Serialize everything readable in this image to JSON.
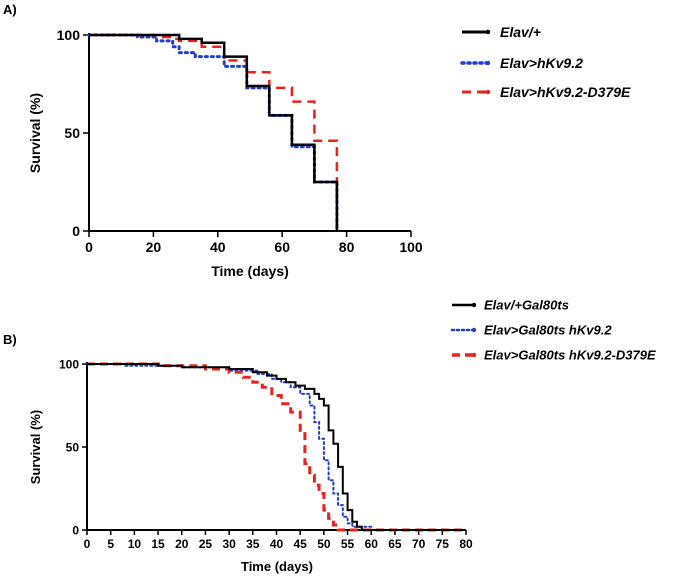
{
  "chart_data": [
    {
      "panel": "A)",
      "type": "line",
      "subtype": "step-survival",
      "xlabel": "Time (days)",
      "ylabel": "Survival (%)",
      "xlim": [
        0,
        100
      ],
      "ylim": [
        0,
        100
      ],
      "xticks": [
        0,
        20,
        40,
        60,
        80,
        100
      ],
      "yticks": [
        0,
        50,
        100
      ],
      "legend_position": "top-right",
      "series": [
        {
          "name": "Elav/+",
          "color": "#000000",
          "style": "solid",
          "points": [
            [
              0,
              100
            ],
            [
              28,
              100
            ],
            [
              28,
              98
            ],
            [
              35,
              98
            ],
            [
              35,
              96
            ],
            [
              42,
              96
            ],
            [
              42,
              89
            ],
            [
              49,
              89
            ],
            [
              49,
              74
            ],
            [
              56,
              74
            ],
            [
              56,
              59
            ],
            [
              63,
              59
            ],
            [
              63,
              44
            ],
            [
              70,
              44
            ],
            [
              70,
              25
            ],
            [
              77,
              25
            ],
            [
              77,
              0
            ]
          ]
        },
        {
          "name": "Elav>hKv9.2",
          "color": "#1f3fc9",
          "style": "dotted",
          "points": [
            [
              0,
              100
            ],
            [
              15,
              100
            ],
            [
              15,
              99
            ],
            [
              21,
              99
            ],
            [
              21,
              97
            ],
            [
              26,
              97
            ],
            [
              26,
              94
            ],
            [
              28,
              94
            ],
            [
              28,
              91
            ],
            [
              33,
              91
            ],
            [
              33,
              89
            ],
            [
              42,
              89
            ],
            [
              42,
              84
            ],
            [
              49,
              84
            ],
            [
              49,
              73
            ],
            [
              56,
              73
            ],
            [
              56,
              59
            ],
            [
              63,
              59
            ],
            [
              63,
              43
            ],
            [
              70,
              43
            ],
            [
              70,
              25
            ],
            [
              77,
              25
            ],
            [
              77,
              0
            ]
          ]
        },
        {
          "name": "Elav>hKv9.2-D379E",
          "color": "#e8231c",
          "style": "dashed",
          "points": [
            [
              0,
              100
            ],
            [
              21,
              100
            ],
            [
              21,
              99
            ],
            [
              26,
              99
            ],
            [
              26,
              98
            ],
            [
              28,
              98
            ],
            [
              28,
              97
            ],
            [
              35,
              97
            ],
            [
              35,
              94
            ],
            [
              42,
              94
            ],
            [
              42,
              87
            ],
            [
              49,
              87
            ],
            [
              49,
              81
            ],
            [
              56,
              81
            ],
            [
              56,
              73
            ],
            [
              63,
              73
            ],
            [
              63,
              66
            ],
            [
              70,
              66
            ],
            [
              70,
              46
            ],
            [
              77,
              46
            ],
            [
              77,
              0
            ]
          ]
        }
      ]
    },
    {
      "panel": "B)",
      "type": "line",
      "subtype": "step-survival",
      "xlabel": "Time (days)",
      "ylabel": "Survival (%)",
      "xlim": [
        0,
        80
      ],
      "ylim": [
        0,
        100
      ],
      "xticks": [
        0,
        5,
        10,
        15,
        20,
        25,
        30,
        35,
        40,
        45,
        50,
        55,
        60,
        65,
        70,
        75,
        80
      ],
      "yticks": [
        0,
        50,
        100
      ],
      "legend_position": "top-right",
      "series": [
        {
          "name": "Elav/+Gal80ts",
          "color": "#000000",
          "style": "solid",
          "points": [
            [
              0,
              100
            ],
            [
              15,
              100
            ],
            [
              15,
              99
            ],
            [
              20,
              99
            ],
            [
              20,
              98
            ],
            [
              30,
              98
            ],
            [
              30,
              97
            ],
            [
              35,
              97
            ],
            [
              35,
              95
            ],
            [
              38,
              95
            ],
            [
              38,
              93
            ],
            [
              40,
              93
            ],
            [
              40,
              91
            ],
            [
              42,
              91
            ],
            [
              42,
              89
            ],
            [
              44,
              89
            ],
            [
              44,
              87
            ],
            [
              46,
              87
            ],
            [
              46,
              85
            ],
            [
              48,
              85
            ],
            [
              48,
              82
            ],
            [
              49,
              82
            ],
            [
              49,
              79
            ],
            [
              50,
              79
            ],
            [
              50,
              75
            ],
            [
              51,
              75
            ],
            [
              51,
              60
            ],
            [
              52,
              60
            ],
            [
              52,
              52
            ],
            [
              53,
              52
            ],
            [
              53,
              38
            ],
            [
              54,
              38
            ],
            [
              54,
              22
            ],
            [
              55,
              22
            ],
            [
              55,
              12
            ],
            [
              56,
              12
            ],
            [
              56,
              5
            ],
            [
              57,
              5
            ],
            [
              57,
              2
            ],
            [
              58,
              2
            ],
            [
              58,
              0
            ],
            [
              80,
              0
            ]
          ]
        },
        {
          "name": "Elav>Gal80ts hKv9.2",
          "color": "#1f3fc9",
          "style": "dotted",
          "points": [
            [
              0,
              100
            ],
            [
              8,
              100
            ],
            [
              8,
              99
            ],
            [
              20,
              99
            ],
            [
              20,
              98
            ],
            [
              30,
              98
            ],
            [
              30,
              96
            ],
            [
              36,
              96
            ],
            [
              36,
              94
            ],
            [
              39,
              94
            ],
            [
              39,
              91
            ],
            [
              41,
              91
            ],
            [
              41,
              89
            ],
            [
              43,
              89
            ],
            [
              43,
              86
            ],
            [
              45,
              86
            ],
            [
              45,
              82
            ],
            [
              47,
              82
            ],
            [
              47,
              75
            ],
            [
              48,
              75
            ],
            [
              48,
              65
            ],
            [
              49,
              65
            ],
            [
              49,
              55
            ],
            [
              50,
              55
            ],
            [
              50,
              42
            ],
            [
              51,
              42
            ],
            [
              51,
              30
            ],
            [
              52,
              30
            ],
            [
              52,
              22
            ],
            [
              53,
              22
            ],
            [
              53,
              15
            ],
            [
              54,
              15
            ],
            [
              54,
              8
            ],
            [
              55,
              8
            ],
            [
              55,
              4
            ],
            [
              56,
              4
            ],
            [
              56,
              2
            ],
            [
              60,
              2
            ],
            [
              60,
              0
            ],
            [
              80,
              0
            ]
          ]
        },
        {
          "name": "Elav>Gal80ts hKv9.2-D379E",
          "color": "#e8231c",
          "style": "dashed",
          "points": [
            [
              0,
              100
            ],
            [
              16,
              100
            ],
            [
              16,
              99
            ],
            [
              25,
              99
            ],
            [
              25,
              97
            ],
            [
              30,
              97
            ],
            [
              30,
              95
            ],
            [
              33,
              95
            ],
            [
              33,
              92
            ],
            [
              35,
              92
            ],
            [
              35,
              89
            ],
            [
              37,
              89
            ],
            [
              37,
              86
            ],
            [
              39,
              86
            ],
            [
              39,
              81
            ],
            [
              41,
              81
            ],
            [
              41,
              76
            ],
            [
              43,
              76
            ],
            [
              43,
              71
            ],
            [
              45,
              71
            ],
            [
              45,
              60
            ],
            [
              46,
              60
            ],
            [
              46,
              40
            ],
            [
              47,
              40
            ],
            [
              47,
              33
            ],
            [
              48,
              33
            ],
            [
              48,
              27
            ],
            [
              49,
              27
            ],
            [
              49,
              22
            ],
            [
              50,
              22
            ],
            [
              50,
              12
            ],
            [
              51,
              12
            ],
            [
              51,
              7
            ],
            [
              52,
              7
            ],
            [
              52,
              3
            ],
            [
              53,
              3
            ],
            [
              53,
              0
            ],
            [
              80,
              0
            ]
          ]
        }
      ]
    }
  ]
}
